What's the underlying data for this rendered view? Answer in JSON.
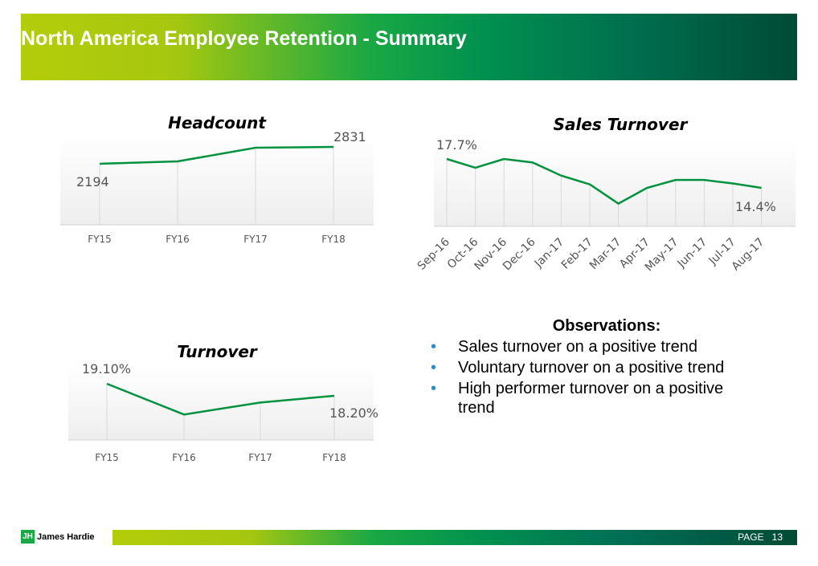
{
  "header": {
    "title": "North America Employee Retention - Summary"
  },
  "observations": {
    "heading": "Observations:",
    "items": [
      "Sales turnover on a positive trend",
      "Voluntary turnover on a positive trend",
      "High performer turnover on a positive trend"
    ]
  },
  "footer": {
    "brand": "James Hardie",
    "page_label": "PAGE",
    "page_number": "13",
    "line_color": "#00923f"
  },
  "chart_data": [
    {
      "type": "line",
      "title": "Headcount",
      "categories": [
        "FY15",
        "FY16",
        "FY17",
        "FY18"
      ],
      "values": [
        2194,
        2285,
        2800,
        2831
      ],
      "data_labels": [
        "2194",
        "",
        "",
        "2831"
      ],
      "ylim": [
        1700,
        3000
      ]
    },
    {
      "type": "line",
      "title": "Sales Turnover",
      "categories": [
        "Sep-16",
        "Oct-16",
        "Nov-16",
        "Dec-16",
        "Jan-17",
        "Feb-17",
        "Mar-17",
        "Apr-17",
        "May-17",
        "Jun-17",
        "Jul-17",
        "Aug-17"
      ],
      "values": [
        17.7,
        16.7,
        17.7,
        17.3,
        15.8,
        14.8,
        12.6,
        14.4,
        15.3,
        15.3,
        14.9,
        14.4
      ],
      "data_labels": [
        "17.7%",
        "",
        "",
        "",
        "",
        "",
        "",
        "",
        "",
        "",
        "",
        "14.4%"
      ],
      "ylim": [
        10,
        20
      ]
    },
    {
      "type": "line",
      "title": "Turnover",
      "categories": [
        "FY15",
        "FY16",
        "FY17",
        "FY18"
      ],
      "values": [
        19.1,
        16.8,
        17.7,
        18.2
      ],
      "data_labels": [
        "19.10%",
        "",
        "",
        "18.20%"
      ],
      "ylim": [
        15,
        20
      ]
    }
  ]
}
